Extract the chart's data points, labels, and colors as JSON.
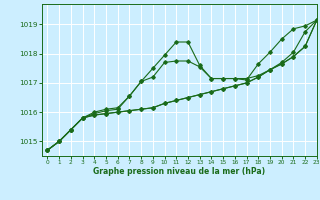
{
  "xlabel": "Graphe pression niveau de la mer (hPa)",
  "bg_color": "#cceeff",
  "grid_color": "#ffffff",
  "line_color": "#1a6b1a",
  "ylim": [
    1014.5,
    1019.7
  ],
  "xlim": [
    -0.5,
    23
  ],
  "yticks": [
    1015,
    1016,
    1017,
    1018,
    1019
  ],
  "xticks": [
    0,
    1,
    2,
    3,
    4,
    5,
    6,
    7,
    8,
    9,
    10,
    11,
    12,
    13,
    14,
    15,
    16,
    17,
    18,
    19,
    20,
    21,
    22,
    23
  ],
  "series": [
    [
      1014.7,
      1015.0,
      1015.4,
      1015.8,
      1015.9,
      1015.95,
      1016.0,
      1016.05,
      1016.1,
      1016.15,
      1016.3,
      1016.4,
      1016.5,
      1016.6,
      1016.7,
      1016.8,
      1016.9,
      1017.0,
      1017.2,
      1017.45,
      1017.65,
      1017.9,
      1018.25,
      1019.15
    ],
    [
      1014.7,
      1015.0,
      1015.4,
      1015.8,
      1015.95,
      1016.05,
      1016.1,
      1016.55,
      1017.05,
      1017.2,
      1017.7,
      1017.75,
      1017.75,
      1017.55,
      1017.15,
      1017.15,
      1017.15,
      1017.1,
      1017.65,
      1018.05,
      1018.5,
      1018.85,
      1018.95,
      1019.15
    ],
    [
      1014.7,
      1015.0,
      1015.4,
      1015.8,
      1016.0,
      1016.1,
      1016.15,
      1016.55,
      1017.05,
      1017.5,
      1017.95,
      1018.4,
      1018.4,
      1017.6,
      1017.15,
      1017.15,
      1017.15,
      1017.15,
      1017.25,
      1017.45,
      1017.7,
      1018.05,
      1018.75,
      1019.15
    ],
    [
      1014.7,
      1015.0,
      1015.4,
      1015.8,
      1015.9,
      1015.95,
      1016.0,
      1016.05,
      1016.1,
      1016.15,
      1016.3,
      1016.4,
      1016.5,
      1016.6,
      1016.7,
      1016.8,
      1016.9,
      1017.0,
      1017.2,
      1017.45,
      1017.65,
      1017.9,
      1018.25,
      1019.15
    ]
  ]
}
